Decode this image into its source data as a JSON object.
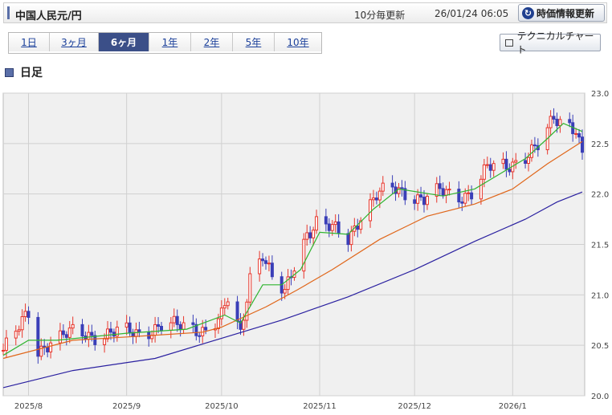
{
  "header": {
    "title": "中国人民元/円",
    "frequency": "10分毎更新",
    "timestamp": "26/01/24 06:05",
    "refresh_label": "時価情報更新"
  },
  "tabs": [
    {
      "label": "1日",
      "active": false
    },
    {
      "label": "3ヶ月",
      "active": false
    },
    {
      "label": "6ヶ月",
      "active": true
    },
    {
      "label": "1年",
      "active": false
    },
    {
      "label": "2年",
      "active": false
    },
    {
      "label": "5年",
      "active": false
    },
    {
      "label": "10年",
      "active": false
    }
  ],
  "technical_button": "テクニカルチャート",
  "section_title": "日足",
  "colors": {
    "up": "#e8352a",
    "down": "#3a3fb8",
    "ma_short": "#2fb42f",
    "ma_mid": "#e0661a",
    "ma_long": "#2a20a0",
    "plot_bg": "#f0f0f0",
    "grid": "#d0d0d0"
  },
  "chart_data": {
    "type": "candlestick",
    "x_range": [
      "2025-07-24",
      "2026-01-23"
    ],
    "ylim": [
      20.0,
      23.0
    ],
    "y_ticks": [
      "20.0",
      "20.5",
      "21.0",
      "21.5",
      "22.0",
      "22.5",
      "23.0"
    ],
    "x_ticks": [
      {
        "date": "2025-08-01",
        "label": "2025/8"
      },
      {
        "date": "2025-09-01",
        "label": "2025/9"
      },
      {
        "date": "2025-10-01",
        "label": "2025/10"
      },
      {
        "date": "2025-11-01",
        "label": "2025/11"
      },
      {
        "date": "2025-12-01",
        "label": "2025/12"
      },
      {
        "date": "2026-01-01",
        "label": "2026/1"
      }
    ],
    "grid": true,
    "close_path": [
      [
        "2025-07-24",
        20.45
      ],
      [
        "2025-07-28",
        20.62
      ],
      [
        "2025-08-01",
        20.82
      ],
      [
        "2025-08-04",
        20.45
      ],
      [
        "2025-08-08",
        20.55
      ],
      [
        "2025-08-15",
        20.62
      ],
      [
        "2025-08-22",
        20.6
      ],
      [
        "2025-08-29",
        20.63
      ],
      [
        "2025-09-05",
        20.62
      ],
      [
        "2025-09-12",
        20.7
      ],
      [
        "2025-09-19",
        20.68
      ],
      [
        "2025-09-26",
        20.66
      ],
      [
        "2025-10-01",
        20.78
      ],
      [
        "2025-10-03",
        20.95
      ],
      [
        "2025-10-07",
        20.6
      ],
      [
        "2025-10-10",
        21.2
      ],
      [
        "2025-10-14",
        21.42
      ],
      [
        "2025-10-17",
        21.15
      ],
      [
        "2025-10-21",
        21.0
      ],
      [
        "2025-10-24",
        21.3
      ],
      [
        "2025-10-28",
        21.62
      ],
      [
        "2025-10-31",
        21.72
      ],
      [
        "2025-11-05",
        21.65
      ],
      [
        "2025-11-10",
        21.55
      ],
      [
        "2025-11-14",
        21.8
      ],
      [
        "2025-11-19",
        21.98
      ],
      [
        "2025-11-24",
        22.05
      ],
      [
        "2025-11-28",
        22.02
      ],
      [
        "2025-12-04",
        21.95
      ],
      [
        "2025-12-09",
        22.02
      ],
      [
        "2025-12-15",
        21.98
      ],
      [
        "2025-12-19",
        22.02
      ],
      [
        "2025-12-24",
        22.25
      ],
      [
        "2025-12-30",
        22.28
      ],
      [
        "2026-01-06",
        22.4
      ],
      [
        "2026-01-10",
        22.48
      ],
      [
        "2026-01-14",
        22.75
      ],
      [
        "2026-01-18",
        22.72
      ],
      [
        "2026-01-21",
        22.66
      ],
      [
        "2026-01-23",
        22.38
      ]
    ],
    "ma_short_path": [
      [
        "2025-07-24",
        20.4
      ],
      [
        "2025-08-01",
        20.55
      ],
      [
        "2025-08-10",
        20.55
      ],
      [
        "2025-09-01",
        20.62
      ],
      [
        "2025-09-20",
        20.66
      ],
      [
        "2025-10-02",
        20.8
      ],
      [
        "2025-10-07",
        20.72
      ],
      [
        "2025-10-14",
        21.1
      ],
      [
        "2025-10-20",
        21.1
      ],
      [
        "2025-10-26",
        21.25
      ],
      [
        "2025-11-01",
        21.62
      ],
      [
        "2025-11-10",
        21.6
      ],
      [
        "2025-11-18",
        21.85
      ],
      [
        "2025-11-26",
        22.05
      ],
      [
        "2025-12-10",
        21.98
      ],
      [
        "2025-12-20",
        22.05
      ],
      [
        "2025-12-28",
        22.2
      ],
      [
        "2026-01-05",
        22.35
      ],
      [
        "2026-01-12",
        22.55
      ],
      [
        "2026-01-17",
        22.7
      ],
      [
        "2026-01-23",
        22.62
      ]
    ],
    "ma_mid_path": [
      [
        "2025-07-24",
        20.37
      ],
      [
        "2025-08-15",
        20.55
      ],
      [
        "2025-09-10",
        20.6
      ],
      [
        "2025-09-25",
        20.63
      ],
      [
        "2025-10-01",
        20.68
      ],
      [
        "2025-10-15",
        20.88
      ],
      [
        "2025-10-25",
        21.05
      ],
      [
        "2025-11-05",
        21.25
      ],
      [
        "2025-11-20",
        21.55
      ],
      [
        "2025-12-05",
        21.78
      ],
      [
        "2025-12-20",
        21.9
      ],
      [
        "2026-01-01",
        22.05
      ],
      [
        "2026-01-12",
        22.3
      ],
      [
        "2026-01-23",
        22.52
      ]
    ],
    "ma_long_path": [
      [
        "2025-07-24",
        20.08
      ],
      [
        "2025-08-15",
        20.25
      ],
      [
        "2025-09-10",
        20.37
      ],
      [
        "2025-10-01",
        20.57
      ],
      [
        "2025-10-20",
        20.75
      ],
      [
        "2025-11-10",
        20.98
      ],
      [
        "2025-12-01",
        21.25
      ],
      [
        "2025-12-20",
        21.53
      ],
      [
        "2026-01-05",
        21.75
      ],
      [
        "2026-01-15",
        21.92
      ],
      [
        "2026-01-23",
        22.02
      ]
    ]
  }
}
